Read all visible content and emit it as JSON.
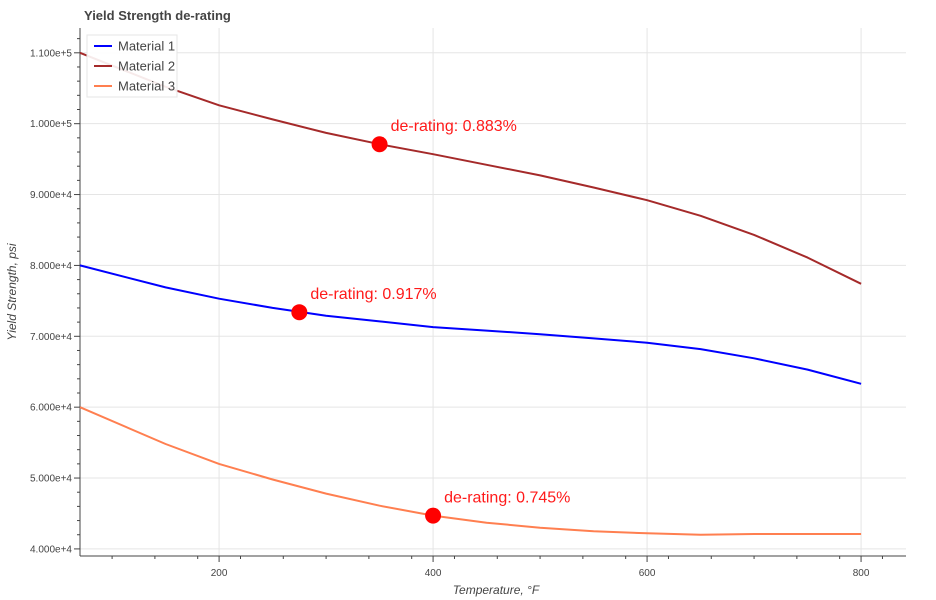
{
  "chart_data": {
    "type": "line",
    "title": "Yield Strength de-rating",
    "xlabel": "Temperature, °F",
    "ylabel": "Yield Strength, psi",
    "xlim": [
      70,
      842
    ],
    "ylim": [
      39000,
      113500
    ],
    "x_ticks": [
      200,
      400,
      600,
      800
    ],
    "x_tick_labels": [
      "200",
      "400",
      "600",
      "800"
    ],
    "y_ticks": [
      40000,
      50000,
      60000,
      70000,
      80000,
      90000,
      100000,
      110000
    ],
    "y_tick_labels": [
      "4.000e+4",
      "5.000e+4",
      "6.000e+4",
      "7.000e+4",
      "8.000e+4",
      "9.000e+4",
      "1.000e+5",
      "1.100e+5"
    ],
    "grid": true,
    "legend_position": "top-left",
    "series": [
      {
        "name": "Material 1",
        "color": "#0000ff",
        "x": [
          70,
          150,
          200,
          250,
          300,
          350,
          400,
          450,
          500,
          550,
          600,
          650,
          700,
          750,
          800
        ],
        "y": [
          80000,
          76900,
          75300,
          74000,
          72900,
          72100,
          71300,
          70800,
          70300,
          69700,
          69100,
          68200,
          66900,
          65300,
          63300
        ]
      },
      {
        "name": "Material 2",
        "color": "#a52a2a",
        "x": [
          70,
          150,
          200,
          250,
          300,
          350,
          400,
          450,
          500,
          550,
          600,
          650,
          700,
          750,
          800
        ],
        "y": [
          110000,
          105200,
          102600,
          100600,
          98700,
          97100,
          95700,
          94200,
          92700,
          91000,
          89200,
          87000,
          84300,
          81100,
          77400
        ]
      },
      {
        "name": "Material 3",
        "color": "#ff7f50",
        "x": [
          70,
          150,
          200,
          250,
          300,
          350,
          400,
          450,
          500,
          550,
          600,
          650,
          700,
          750,
          800
        ],
        "y": [
          60000,
          54800,
          52000,
          49800,
          47800,
          46100,
          44700,
          43700,
          43000,
          42500,
          42200,
          42000,
          42100,
          42100,
          42100
        ]
      }
    ],
    "markers": [
      {
        "x": 275,
        "y": 73400,
        "label": "de-rating: 0.917%",
        "color": "#ff0000"
      },
      {
        "x": 350,
        "y": 97100,
        "label": "de-rating: 0.883%",
        "color": "#ff0000"
      },
      {
        "x": 400,
        "y": 44700,
        "label": "de-rating: 0.745%",
        "color": "#ff0000"
      }
    ]
  }
}
